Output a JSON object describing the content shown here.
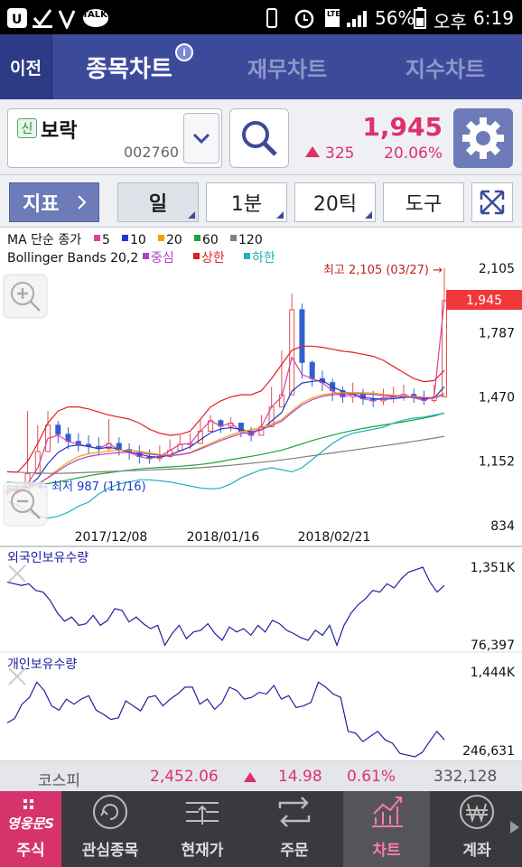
{
  "status": {
    "battery_pct": "56%",
    "ampm": "오후",
    "time": "6:19",
    "talk": "TALK",
    "lte": "LTE"
  },
  "nav": {
    "back": "이전",
    "tabs": [
      "종목차트",
      "재무차트",
      "지수차트"
    ]
  },
  "stock": {
    "badge": "신",
    "name": "보락",
    "code": "002760",
    "price": "1,945",
    "change": "325",
    "change_pct": "20.06%"
  },
  "toolbar": {
    "indicator": "지표",
    "day": "일",
    "minute": "1분",
    "tick": "20틱",
    "tools": "도구"
  },
  "legend": {
    "ma_label": "MA 단순 종가",
    "ma_items": [
      {
        "label": "5",
        "color": "#e040a0"
      },
      {
        "label": "10",
        "color": "#1a3cc8"
      },
      {
        "label": "20",
        "color": "#f0a000"
      },
      {
        "label": "60",
        "color": "#20a040"
      },
      {
        "label": "120",
        "color": "#808080"
      }
    ],
    "bb_label": "Bollinger Bands 20,2",
    "bb_items": [
      {
        "label": "중심",
        "color": "#b040d0"
      },
      {
        "label": "상한",
        "color": "#e02020"
      },
      {
        "label": "하한",
        "color": "#20b0c0"
      }
    ]
  },
  "chart_data": [
    {
      "type": "line",
      "title": "",
      "y_ticks": [
        "2,105",
        "1,787",
        "1,470",
        "1,152",
        "834"
      ],
      "ylim": [
        834,
        2105
      ],
      "x_ticks": [
        "2017/12/08",
        "2018/01/16",
        "2018/02/21"
      ],
      "current_price_label": "1,945",
      "annotations": {
        "high": "최고 2,105 (03/27) →",
        "low": "← 최저 987 (11/16)"
      },
      "series": [
        {
          "name": "5",
          "values": [
            1002,
            1005,
            1042,
            1118,
            1265,
            1280,
            1250,
            1235,
            1225,
            1215,
            1240,
            1210,
            1195,
            1175,
            1165,
            1175,
            1205,
            1235,
            1240,
            1300,
            1352,
            1325,
            1340,
            1300,
            1280,
            1322,
            1420,
            1470,
            1665,
            1580,
            1560,
            1540,
            1500,
            1470,
            1482,
            1460,
            1450,
            1465,
            1470,
            1482,
            1465,
            1452,
            1470,
            1945
          ]
        },
        {
          "name": "10",
          "values": [
            1012,
            1010,
            1025,
            1068,
            1140,
            1195,
            1225,
            1232,
            1225,
            1213,
            1222,
            1210,
            1198,
            1186,
            1176,
            1171,
            1183,
            1203,
            1223,
            1258,
            1292,
            1311,
            1318,
            1308,
            1298,
            1306,
            1351,
            1392,
            1498,
            1538,
            1546,
            1552,
            1518,
            1498,
            1481,
            1468,
            1461,
            1458,
            1461,
            1467,
            1469,
            1461,
            1464,
            1520
          ]
        },
        {
          "name": "20",
          "values": [
            1020,
            1015,
            1018,
            1034,
            1072,
            1112,
            1148,
            1175,
            1189,
            1196,
            1203,
            1207,
            1206,
            1201,
            1193,
            1185,
            1183,
            1186,
            1195,
            1217,
            1240,
            1262,
            1281,
            1298,
            1307,
            1316,
            1336,
            1358,
            1400,
            1440,
            1465,
            1480,
            1487,
            1491,
            1491,
            1490,
            1488,
            1482,
            1478,
            1474,
            1472,
            1468,
            1466,
            1490
          ]
        },
        {
          "name": "60",
          "values": [
            1050,
            1045,
            1042,
            1040,
            1042,
            1050,
            1060,
            1070,
            1080,
            1088,
            1095,
            1102,
            1108,
            1114,
            1118,
            1121,
            1124,
            1127,
            1131,
            1136,
            1142,
            1150,
            1160,
            1168,
            1176,
            1185,
            1196,
            1207,
            1222,
            1238,
            1254,
            1268,
            1281,
            1293,
            1304,
            1314,
            1323,
            1331,
            1339,
            1347,
            1356,
            1365,
            1375,
            1390
          ]
        },
        {
          "name": "120",
          "values": [
            1100,
            1098,
            1096,
            1094,
            1092,
            1092,
            1093,
            1095,
            1097,
            1099,
            1101,
            1103,
            1105,
            1107,
            1109,
            1111,
            1113,
            1115,
            1117,
            1120,
            1124,
            1128,
            1132,
            1137,
            1142,
            1147,
            1152,
            1158,
            1165,
            1172,
            1179,
            1186,
            1193,
            1200,
            1207,
            1214,
            1221,
            1228,
            1235,
            1242,
            1250,
            1258,
            1266,
            1275
          ]
        },
        {
          "name": "중심",
          "values": [
            1030,
            1026,
            1028,
            1040,
            1070,
            1104,
            1136,
            1160,
            1175,
            1184,
            1190,
            1195,
            1196,
            1193,
            1187,
            1181,
            1180,
            1184,
            1193,
            1212,
            1233,
            1254,
            1272,
            1288,
            1298,
            1308,
            1328,
            1350,
            1392,
            1430,
            1456,
            1472,
            1480,
            1484,
            1485,
            1484,
            1482,
            1477,
            1473,
            1470,
            1468,
            1465,
            1464,
            1480
          ]
        },
        {
          "name": "상한",
          "values": [
            1100,
            1098,
            1150,
            1240,
            1340,
            1400,
            1420,
            1420,
            1410,
            1395,
            1380,
            1370,
            1360,
            1340,
            1310,
            1290,
            1280,
            1285,
            1300,
            1360,
            1420,
            1450,
            1470,
            1480,
            1480,
            1500,
            1560,
            1630,
            1700,
            1720,
            1720,
            1715,
            1705,
            1695,
            1690,
            1680,
            1670,
            1650,
            1620,
            1590,
            1560,
            1545,
            1550,
            1600
          ]
        },
        {
          "name": "하한",
          "values": [
            955,
            935,
            905,
            880,
            870,
            880,
            900,
            930,
            950,
            990,
            1020,
            1040,
            1050,
            1060,
            1060,
            1055,
            1050,
            1040,
            1030,
            1020,
            1015,
            1020,
            1040,
            1070,
            1090,
            1110,
            1120,
            1110,
            1100,
            1120,
            1160,
            1200,
            1240,
            1270,
            1290,
            1300,
            1310,
            1320,
            1340,
            1355,
            1365,
            1370,
            1380,
            1390
          ]
        }
      ],
      "price_close": [
        1002,
        1005,
        1090,
        1200,
        1330,
        1285,
        1250,
        1235,
        1225,
        1215,
        1240,
        1210,
        1195,
        1175,
        1165,
        1175,
        1205,
        1235,
        1240,
        1300,
        1352,
        1325,
        1340,
        1300,
        1280,
        1322,
        1420,
        1480,
        1900,
        1640,
        1560,
        1540,
        1500,
        1470,
        1482,
        1460,
        1450,
        1465,
        1470,
        1482,
        1465,
        1452,
        1470,
        1945
      ],
      "price_high": [
        1030,
        1040,
        1400,
        1330,
        1400,
        1350,
        1320,
        1290,
        1280,
        1270,
        1360,
        1270,
        1240,
        1230,
        1210,
        1230,
        1260,
        1280,
        1290,
        1360,
        1380,
        1360,
        1370,
        1340,
        1320,
        1380,
        1520,
        1700,
        1980,
        1930,
        1650,
        1600,
        1560,
        1520,
        1540,
        1510,
        1500,
        1510,
        1520,
        1530,
        1510,
        1500,
        1530,
        2105
      ],
      "price_low": [
        980,
        985,
        1000,
        1150,
        1240,
        1240,
        1210,
        1200,
        1190,
        1180,
        1200,
        1180,
        1160,
        1140,
        1140,
        1150,
        1170,
        1200,
        1210,
        1260,
        1300,
        1290,
        1300,
        1270,
        1250,
        1280,
        1380,
        1430,
        1500,
        1560,
        1520,
        1500,
        1450,
        1440,
        1440,
        1430,
        1420,
        1430,
        1440,
        1450,
        1440,
        1430,
        1440,
        1520
      ]
    },
    {
      "type": "line",
      "title": "외국인보유수량",
      "y_ticks": [
        "1,351K",
        "76,397"
      ],
      "values": [
        0.82,
        0.8,
        0.78,
        0.8,
        0.72,
        0.7,
        0.6,
        0.45,
        0.35,
        0.4,
        0.3,
        0.32,
        0.42,
        0.3,
        0.36,
        0.5,
        0.48,
        0.34,
        0.4,
        0.32,
        0.26,
        0.3,
        0.06,
        0.2,
        0.3,
        0.14,
        0.22,
        0.24,
        0.32,
        0.2,
        0.12,
        0.28,
        0.22,
        0.26,
        0.18,
        0.3,
        0.22,
        0.36,
        0.32,
        0.24,
        0.2,
        0.15,
        0.12,
        0.24,
        0.18,
        0.3,
        0.06,
        0.3,
        0.45,
        0.55,
        0.62,
        0.72,
        0.7,
        0.8,
        0.75,
        0.86,
        0.94,
        0.97,
        1.0,
        0.82,
        0.7,
        0.78
      ]
    },
    {
      "type": "line",
      "title": "개인보유수량",
      "y_ticks": [
        "1,444K",
        "246,631"
      ],
      "values": [
        0.4,
        0.45,
        0.62,
        0.7,
        0.88,
        0.78,
        0.6,
        0.55,
        0.68,
        0.62,
        0.68,
        0.72,
        0.55,
        0.5,
        0.44,
        0.46,
        0.66,
        0.6,
        0.54,
        0.7,
        0.72,
        0.6,
        0.68,
        0.74,
        0.82,
        0.82,
        0.62,
        0.68,
        0.56,
        0.64,
        0.82,
        0.78,
        0.68,
        0.7,
        0.76,
        0.74,
        0.84,
        0.68,
        0.72,
        0.58,
        0.6,
        0.64,
        0.88,
        0.82,
        0.74,
        0.7,
        0.3,
        0.28,
        0.18,
        0.24,
        0.3,
        0.2,
        0.16,
        0.04,
        0.02,
        0.0,
        0.05,
        0.18,
        0.3,
        0.2
      ]
    }
  ],
  "index_bar": {
    "name": "코스피",
    "value": "2,452.06",
    "change": "14.98",
    "pct": "0.61%",
    "volume": "332,128"
  },
  "bottom_nav": {
    "brand": "영웅문S",
    "items": [
      "주식",
      "관심종목",
      "현재가",
      "주문",
      "차트",
      "계좌"
    ]
  }
}
